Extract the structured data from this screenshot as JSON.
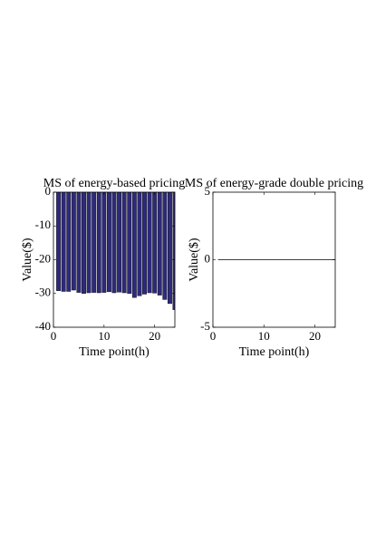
{
  "chart_data": [
    {
      "type": "bar",
      "title": "MS of energy-based pricing",
      "xlabel": "Time point(h)",
      "ylabel": "Value($)",
      "x": [
        1,
        2,
        3,
        4,
        5,
        6,
        7,
        8,
        9,
        10,
        11,
        12,
        13,
        14,
        15,
        16,
        17,
        18,
        19,
        20,
        21,
        22,
        23,
        24
      ],
      "values": [
        -29.2,
        -29.4,
        -29.4,
        -29,
        -29.7,
        -30,
        -29.8,
        -29.7,
        -29.8,
        -29.7,
        -29.5,
        -29.8,
        -29.6,
        -29.8,
        -30,
        -31.2,
        -30.7,
        -30.2,
        -29.8,
        -29.9,
        -30.5,
        -31.8,
        -33,
        -34.8
      ],
      "color": "#2e2a7a",
      "xlim": [
        0,
        24
      ],
      "ylim": [
        -40,
        0
      ],
      "xticks": [
        0,
        10,
        20
      ],
      "yticks": [
        -40,
        -30,
        -20,
        -10,
        0
      ]
    },
    {
      "type": "line",
      "title": "MS of energy-grade double pricing",
      "xlabel": "Time point(h)",
      "ylabel": "Value($)",
      "x": [
        1,
        2,
        3,
        4,
        5,
        6,
        7,
        8,
        9,
        10,
        11,
        12,
        13,
        14,
        15,
        16,
        17,
        18,
        19,
        20,
        21,
        22,
        23,
        24
      ],
      "values": [
        0,
        0,
        0,
        0,
        0,
        0,
        0,
        0,
        0,
        0,
        0,
        0,
        0,
        0,
        0,
        0,
        0,
        0,
        0,
        0,
        0,
        0,
        0,
        0
      ],
      "color": "#000000",
      "xlim": [
        0,
        24
      ],
      "ylim": [
        -5,
        5
      ],
      "xticks": [
        0,
        10,
        20
      ],
      "yticks": [
        -5,
        0,
        5
      ]
    }
  ]
}
